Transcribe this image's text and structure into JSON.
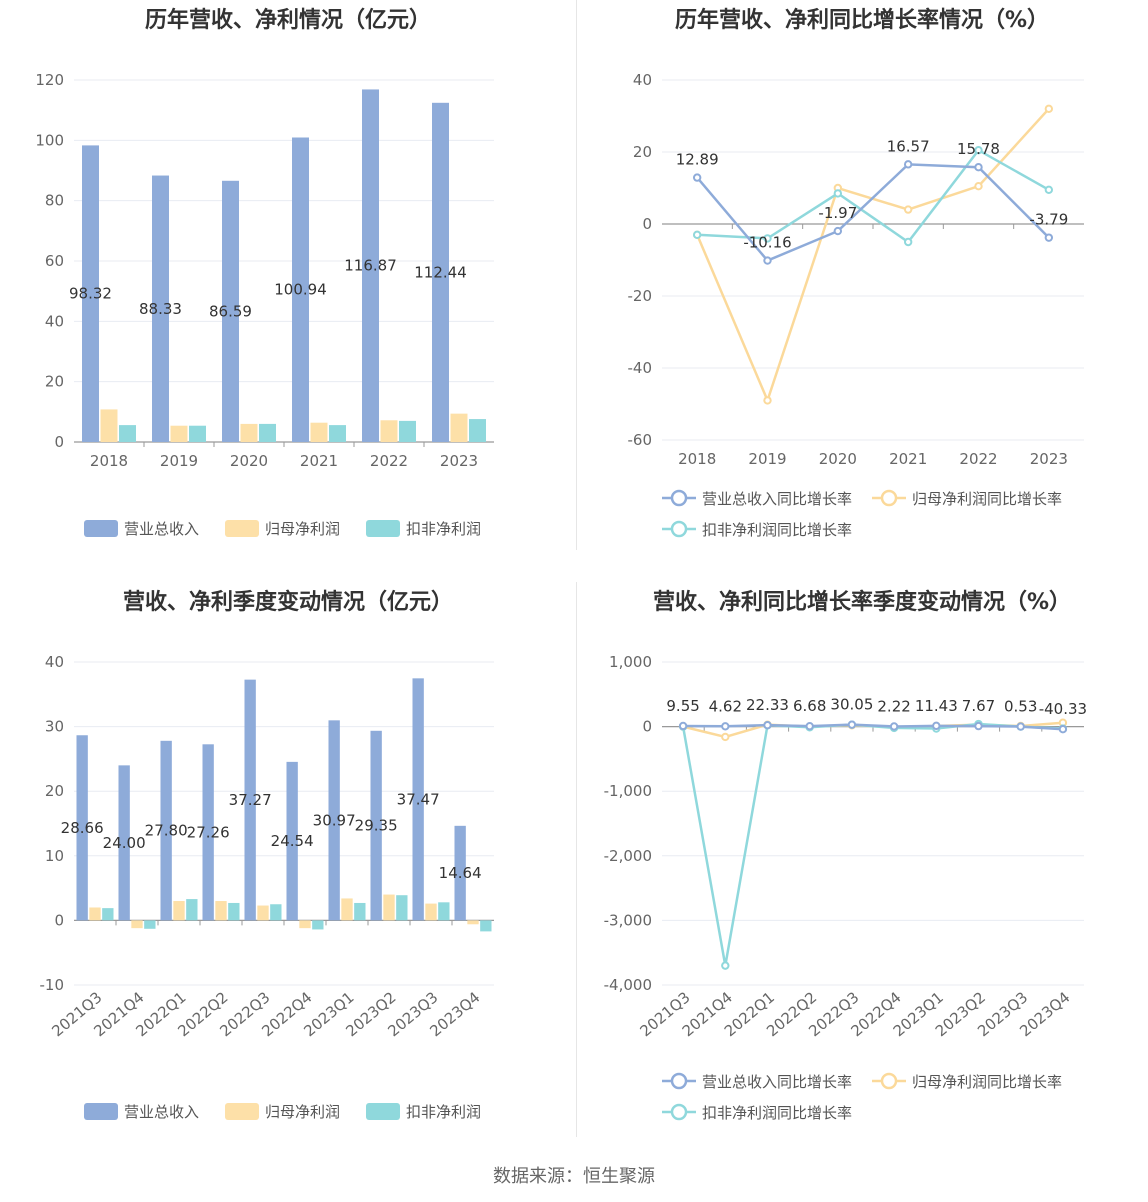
{
  "colors": {
    "revenue": "#8eabd9",
    "net_profit": "#fde0a8",
    "deducted_profit": "#8fd8dc",
    "revenue_line": "#8eabd9",
    "net_line": "#fbd99a",
    "ded_line": "#8fd8dc"
  },
  "footer": {
    "source": "数据来源：恒生聚源"
  },
  "chart_data": [
    {
      "id": "annual_amounts",
      "type": "bar",
      "title": "历年营收、净利情况（亿元）",
      "categories": [
        "2018",
        "2019",
        "2020",
        "2021",
        "2022",
        "2023"
      ],
      "ylim": [
        0,
        120
      ],
      "yticks": [
        0,
        20,
        40,
        60,
        80,
        100,
        120
      ],
      "ytick_labels": [
        "0",
        "20",
        "40",
        "60",
        "80",
        "100",
        "120"
      ],
      "series": [
        {
          "name": "营业总收入",
          "values": [
            98.32,
            88.33,
            86.59,
            100.94,
            116.87,
            112.44
          ],
          "labels": [
            "98.32",
            "88.33",
            "86.59",
            "100.94",
            "116.87",
            "112.44"
          ]
        },
        {
          "name": "归母净利润",
          "values": [
            10.8,
            5.4,
            6.0,
            6.4,
            7.2,
            9.4
          ]
        },
        {
          "name": "扣非净利润",
          "values": [
            5.6,
            5.4,
            6.0,
            5.6,
            7.0,
            7.6
          ]
        }
      ],
      "legend": [
        "营业总收入",
        "归母净利润",
        "扣非净利润"
      ]
    },
    {
      "id": "annual_growth",
      "type": "line",
      "title": "历年营收、净利同比增长率情况（%）",
      "categories": [
        "2018",
        "2019",
        "2020",
        "2021",
        "2022",
        "2023"
      ],
      "ylim": [
        -60,
        40
      ],
      "yticks": [
        -60,
        -40,
        -20,
        0,
        20,
        40
      ],
      "ytick_labels": [
        "-60",
        "-40",
        "-20",
        "0",
        "20",
        "40"
      ],
      "series": [
        {
          "name": "营业总收入同比增长率",
          "values": [
            12.89,
            -10.16,
            -1.97,
            16.57,
            15.78,
            -3.79
          ],
          "labels": [
            "12.89",
            "-10.16",
            "-1.97",
            "16.57",
            "15.78",
            "-3.79"
          ]
        },
        {
          "name": "归母净利润同比增长率",
          "values": [
            -3,
            -49,
            10,
            4,
            10.5,
            32
          ]
        },
        {
          "name": "扣非净利润同比增长率",
          "values": [
            -3,
            -4,
            8.5,
            -5,
            20.5,
            9.5
          ]
        }
      ],
      "legend": [
        "营业总收入同比增长率",
        "归母净利润同比增长率",
        "扣非净利润同比增长率"
      ]
    },
    {
      "id": "quarterly_amounts",
      "type": "bar",
      "title": "营收、净利季度变动情况（亿元）",
      "categories": [
        "2021Q3",
        "2021Q4",
        "2022Q1",
        "2022Q2",
        "2022Q3",
        "2022Q4",
        "2023Q1",
        "2023Q2",
        "2023Q3",
        "2023Q4"
      ],
      "ylim": [
        -10,
        40
      ],
      "yticks": [
        -10,
        0,
        10,
        20,
        30,
        40
      ],
      "ytick_labels": [
        "-10",
        "0",
        "10",
        "20",
        "30",
        "40"
      ],
      "series": [
        {
          "name": "营业总收入",
          "values": [
            28.66,
            24.0,
            27.8,
            27.26,
            37.27,
            24.54,
            30.97,
            29.35,
            37.47,
            14.64
          ],
          "labels": [
            "28.66",
            "24.00",
            "27.80",
            "27.26",
            "37.27",
            "24.54",
            "30.97",
            "29.35",
            "37.47",
            "14.64"
          ]
        },
        {
          "name": "归母净利润",
          "values": [
            2.0,
            -1.2,
            3.0,
            3.0,
            2.3,
            -1.2,
            3.4,
            4.0,
            2.6,
            -0.6
          ]
        },
        {
          "name": "扣非净利润",
          "values": [
            1.9,
            -1.3,
            3.3,
            2.7,
            2.5,
            -1.4,
            2.7,
            3.9,
            2.8,
            -1.7
          ]
        }
      ],
      "legend": [
        "营业总收入",
        "归母净利润",
        "扣非净利润"
      ]
    },
    {
      "id": "quarterly_growth",
      "type": "line",
      "title": "营收、净利同比增长率季度变动情况（%）",
      "categories": [
        "2021Q3",
        "2021Q4",
        "2022Q1",
        "2022Q2",
        "2022Q3",
        "2022Q4",
        "2023Q1",
        "2023Q2",
        "2023Q3",
        "2023Q4"
      ],
      "ylim": [
        -4000,
        1000
      ],
      "yticks": [
        -4000,
        -3000,
        -2000,
        -1000,
        0,
        1000
      ],
      "ytick_labels": [
        "-4,000",
        "-3,000",
        "-2,000",
        "-1,000",
        "0",
        "1,000"
      ],
      "series": [
        {
          "name": "营业总收入同比增长率",
          "values": [
            9.55,
            4.62,
            22.33,
            6.68,
            30.05,
            2.22,
            11.43,
            7.67,
            0.53,
            -40.33
          ],
          "labels": [
            "9.55",
            "4.62",
            "22.33",
            "6.68",
            "30.05",
            "2.22",
            "11.43",
            "7.67",
            "0.53",
            "-40.33"
          ]
        },
        {
          "name": "归母净利润同比增长率",
          "values": [
            0,
            -160,
            30,
            0,
            20,
            -10,
            10,
            30,
            10,
            60
          ]
        },
        {
          "name": "扣非净利润同比增长率",
          "values": [
            0,
            -3700,
            20,
            -10,
            30,
            -20,
            -30,
            40,
            0,
            -30
          ]
        }
      ],
      "legend": [
        "营业总收入同比增长率",
        "归母净利润同比增长率",
        "扣非净利润同比增长率"
      ]
    }
  ]
}
